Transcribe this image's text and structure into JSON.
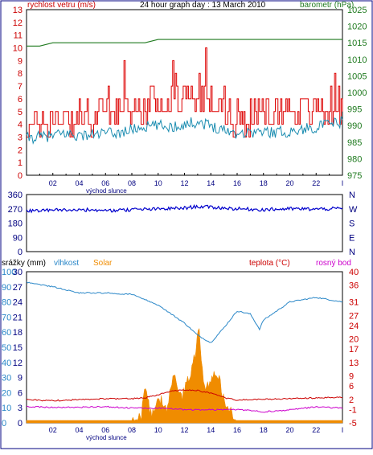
{
  "title": "24 hour graph day : 13 March 2010",
  "colors": {
    "wind": "#cc0000",
    "gust": "#dd0000",
    "wind_avg": "#1a8cb0",
    "baro": "#1f7a1f",
    "dir": "#0000cc",
    "hum": "#2a87c8",
    "solar": "#f08c00",
    "temp": "#cc0000",
    "dew": "#cc00cc",
    "rain": "#0000aa",
    "axis_left": "#cc0000",
    "axis_right_baro": "#1f7a1f",
    "axis_rain": "#000080",
    "axis_temp": "#cc0000"
  },
  "chart_data": [
    {
      "type": "line",
      "name": "wind",
      "labels": {
        "left": "rychlost vetru (m/s)",
        "right": "barometr (hPa)",
        "xnote": "východ slunce"
      },
      "x_ticks": [
        "02",
        "04",
        "06",
        "08",
        "10",
        "12",
        "14",
        "16",
        "18",
        "20",
        "22",
        "I"
      ],
      "y_left": {
        "min": 0,
        "max": 13,
        "ticks": [
          0,
          1,
          2,
          3,
          4,
          5,
          6,
          7,
          8,
          9,
          10,
          11,
          12,
          13
        ]
      },
      "y_right": {
        "min": 975,
        "max": 1025,
        "ticks": [
          975,
          980,
          985,
          990,
          995,
          1000,
          1005,
          1010,
          1015,
          1020,
          1025
        ]
      },
      "x_range": [
        0,
        24
      ],
      "wind_avg": [
        [
          0,
          2.9
        ],
        [
          1,
          3.0
        ],
        [
          2,
          3.1
        ],
        [
          3,
          3.3
        ],
        [
          4,
          3.1
        ],
        [
          5,
          3.2
        ],
        [
          6,
          3.3
        ],
        [
          7,
          3.3
        ],
        [
          8,
          3.6
        ],
        [
          9,
          3.8
        ],
        [
          10,
          3.9
        ],
        [
          11,
          3.8
        ],
        [
          12,
          4.0
        ],
        [
          13,
          4.2
        ],
        [
          14,
          3.9
        ],
        [
          15,
          3.6
        ],
        [
          16,
          3.3
        ],
        [
          17,
          3.4
        ],
        [
          18,
          3.4
        ],
        [
          19,
          3.4
        ],
        [
          20,
          3.4
        ],
        [
          21,
          3.6
        ],
        [
          22,
          3.8
        ],
        [
          23,
          4.0
        ],
        [
          24,
          4.2
        ]
      ],
      "gust": [
        [
          0,
          3.9
        ],
        [
          1,
          4.1
        ],
        [
          2,
          4.4
        ],
        [
          3,
          4.7
        ],
        [
          4,
          4.5
        ],
        [
          5,
          4.6
        ],
        [
          6,
          4.8
        ],
        [
          7,
          4.9
        ],
        [
          8,
          5.0
        ],
        [
          9,
          5.3
        ],
        [
          10,
          5.7
        ],
        [
          11,
          6.0
        ],
        [
          12,
          6.3
        ],
        [
          13,
          6.3
        ],
        [
          14,
          5.6
        ],
        [
          15,
          4.9
        ],
        [
          16,
          4.6
        ],
        [
          17,
          4.8
        ],
        [
          18,
          4.9
        ],
        [
          19,
          5.1
        ],
        [
          20,
          5.3
        ],
        [
          21,
          5.3
        ],
        [
          22,
          5.2
        ],
        [
          23,
          5.4
        ],
        [
          24,
          5.6
        ]
      ],
      "baro": [
        [
          0,
          1014
        ],
        [
          1,
          1014
        ],
        [
          2,
          1015
        ],
        [
          3,
          1015
        ],
        [
          4,
          1015
        ],
        [
          5,
          1015
        ],
        [
          6,
          1015
        ],
        [
          7,
          1015
        ],
        [
          8,
          1015
        ],
        [
          9,
          1015
        ],
        [
          10,
          1016
        ],
        [
          11,
          1016
        ],
        [
          12,
          1016
        ],
        [
          13,
          1016
        ],
        [
          14,
          1016
        ],
        [
          15,
          1016
        ],
        [
          16,
          1016
        ],
        [
          17,
          1016
        ],
        [
          18,
          1016
        ],
        [
          19,
          1016
        ],
        [
          20,
          1016
        ],
        [
          21,
          1016
        ],
        [
          22,
          1016
        ],
        [
          23,
          1016
        ],
        [
          24,
          1016
        ]
      ]
    },
    {
      "type": "line",
      "name": "direction",
      "labels": {
        "xnote": "východ slunce",
        "compass": [
          "N",
          "W",
          "S",
          "E",
          "N"
        ]
      },
      "x_range": [
        0,
        24
      ],
      "y": {
        "min": 0,
        "max": 360,
        "ticks": [
          0,
          90,
          180,
          270,
          360
        ]
      },
      "dir": [
        [
          0,
          255
        ],
        [
          2,
          262
        ],
        [
          4,
          265
        ],
        [
          6,
          258
        ],
        [
          8,
          265
        ],
        [
          10,
          268
        ],
        [
          12,
          275
        ],
        [
          13,
          285
        ],
        [
          14,
          280
        ],
        [
          16,
          270
        ],
        [
          18,
          265
        ],
        [
          20,
          270
        ],
        [
          22,
          268
        ],
        [
          24,
          272
        ]
      ]
    },
    {
      "type": "line",
      "name": "rain-hum-solar-temp",
      "labels": {
        "rain": "srážky (mm)",
        "hum": "vlhkost",
        "solar": "Solar",
        "temp": "teplota (°C)",
        "dew": "rosný bod",
        "xnote": "východ slunce"
      },
      "x_range": [
        0,
        24
      ],
      "y_rain": {
        "min": 0,
        "max": 30,
        "ticks": [
          0,
          3,
          6,
          9,
          12,
          15,
          18,
          21,
          24,
          27,
          30
        ]
      },
      "y_hum": {
        "min": 0,
        "max": 100,
        "ticks": [
          0,
          10,
          20,
          30,
          40,
          50,
          60,
          70,
          80,
          90,
          100
        ]
      },
      "y_temp": {
        "min": -5,
        "max": 40,
        "ticks": [
          -5,
          -1,
          2,
          6,
          9,
          13,
          17,
          20,
          24,
          27,
          31,
          36,
          40
        ]
      },
      "hum": [
        [
          0,
          93
        ],
        [
          2,
          90
        ],
        [
          4,
          86
        ],
        [
          6,
          86
        ],
        [
          8,
          85
        ],
        [
          10,
          78
        ],
        [
          11,
          72
        ],
        [
          12,
          66
        ],
        [
          13,
          58
        ],
        [
          14,
          53
        ],
        [
          15,
          63
        ],
        [
          16,
          74
        ],
        [
          17,
          72
        ],
        [
          17.7,
          62
        ],
        [
          18,
          68
        ],
        [
          20,
          80
        ],
        [
          22,
          83
        ],
        [
          24,
          80
        ]
      ],
      "temp": [
        [
          0,
          1.8
        ],
        [
          2,
          1.6
        ],
        [
          4,
          1.9
        ],
        [
          6,
          2.2
        ],
        [
          8,
          2.2
        ],
        [
          9,
          2.4
        ],
        [
          10,
          3.4
        ],
        [
          11,
          4.4
        ],
        [
          12,
          4.8
        ],
        [
          13,
          4.6
        ],
        [
          14,
          3.8
        ],
        [
          15,
          2.5
        ],
        [
          16,
          1.8
        ],
        [
          18,
          2.0
        ],
        [
          20,
          2.2
        ],
        [
          22,
          2.4
        ],
        [
          24,
          2.6
        ]
      ],
      "dew": [
        [
          0,
          -0.2
        ],
        [
          2,
          -0.4
        ],
        [
          4,
          -0.4
        ],
        [
          6,
          -0.2
        ],
        [
          8,
          -0.6
        ],
        [
          10,
          -0.6
        ],
        [
          12,
          -1.1
        ],
        [
          14,
          -1.1
        ],
        [
          16,
          -1.1
        ],
        [
          17,
          -1.3
        ],
        [
          18,
          -1.7
        ],
        [
          20,
          -1.1
        ],
        [
          22,
          -0.3
        ],
        [
          24,
          -0.6
        ]
      ],
      "solar_pct": [
        [
          0,
          0
        ],
        [
          8,
          0
        ],
        [
          8.7,
          0.04
        ],
        [
          9.0,
          0.22
        ],
        [
          9.5,
          0.05
        ],
        [
          10,
          0.18
        ],
        [
          10.7,
          0.1
        ],
        [
          11.2,
          0.32
        ],
        [
          11.8,
          0.18
        ],
        [
          12.3,
          0.28
        ],
        [
          12.8,
          0.46
        ],
        [
          13.1,
          0.62
        ],
        [
          13.5,
          0.22
        ],
        [
          14.0,
          0.29
        ],
        [
          14.5,
          0.34
        ],
        [
          15.0,
          0.15
        ],
        [
          15.6,
          0.08
        ],
        [
          16,
          0
        ],
        [
          24,
          0
        ]
      ]
    }
  ]
}
